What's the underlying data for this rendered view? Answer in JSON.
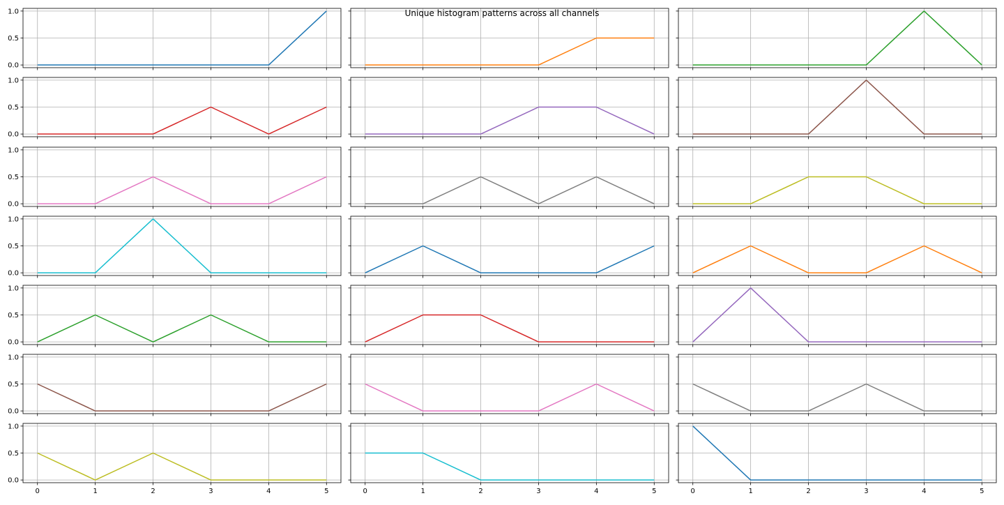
{
  "figure": {
    "title": "Unique histogram patterns across all channels"
  },
  "chart_data": {
    "type": "line",
    "title": "Unique histogram patterns across all channels",
    "layout": "7 rows x 3 columns",
    "x": [
      0,
      1,
      2,
      3,
      4,
      5
    ],
    "xlim": [
      -0.25,
      5.25
    ],
    "ylim": [
      -0.05,
      1.05
    ],
    "x_ticks": [
      "0",
      "1",
      "2",
      "3",
      "4",
      "5"
    ],
    "y_ticks": [
      "0.0",
      "0.5",
      "1.0"
    ],
    "grid": true,
    "sharex": true,
    "sharey": true,
    "panels": [
      {
        "color": "#1f77b4",
        "values": [
          0,
          0,
          0,
          0,
          0,
          1
        ]
      },
      {
        "color": "#ff7f0e",
        "values": [
          0,
          0,
          0,
          0,
          0.5,
          0.5
        ]
      },
      {
        "color": "#2ca02c",
        "values": [
          0,
          0,
          0,
          0,
          1,
          0
        ]
      },
      {
        "color": "#d62728",
        "values": [
          0,
          0,
          0,
          0.5,
          0,
          0.5
        ]
      },
      {
        "color": "#9467bd",
        "values": [
          0,
          0,
          0,
          0.5,
          0.5,
          0
        ]
      },
      {
        "color": "#8c564b",
        "values": [
          0,
          0,
          0,
          1,
          0,
          0
        ]
      },
      {
        "color": "#e377c2",
        "values": [
          0,
          0,
          0.5,
          0,
          0,
          0.5
        ]
      },
      {
        "color": "#7f7f7f",
        "values": [
          0,
          0,
          0.5,
          0,
          0.5,
          0
        ]
      },
      {
        "color": "#bcbd22",
        "values": [
          0,
          0,
          0.5,
          0.5,
          0,
          0
        ]
      },
      {
        "color": "#17becf",
        "values": [
          0,
          0,
          1,
          0,
          0,
          0
        ]
      },
      {
        "color": "#1f77b4",
        "values": [
          0,
          0.5,
          0,
          0,
          0,
          0.5
        ]
      },
      {
        "color": "#ff7f0e",
        "values": [
          0,
          0.5,
          0,
          0,
          0.5,
          0
        ]
      },
      {
        "color": "#2ca02c",
        "values": [
          0,
          0.5,
          0,
          0.5,
          0,
          0
        ]
      },
      {
        "color": "#d62728",
        "values": [
          0,
          0.5,
          0.5,
          0,
          0,
          0
        ]
      },
      {
        "color": "#9467bd",
        "values": [
          0,
          1,
          0,
          0,
          0,
          0
        ]
      },
      {
        "color": "#8c564b",
        "values": [
          0.5,
          0,
          0,
          0,
          0,
          0.5
        ]
      },
      {
        "color": "#e377c2",
        "values": [
          0.5,
          0,
          0,
          0,
          0.5,
          0
        ]
      },
      {
        "color": "#7f7f7f",
        "values": [
          0.5,
          0,
          0,
          0.5,
          0,
          0
        ]
      },
      {
        "color": "#bcbd22",
        "values": [
          0.5,
          0,
          0.5,
          0,
          0,
          0
        ]
      },
      {
        "color": "#17becf",
        "values": [
          0.5,
          0.5,
          0,
          0,
          0,
          0
        ]
      },
      {
        "color": "#1f77b4",
        "values": [
          1,
          0,
          0,
          0,
          0,
          0
        ]
      }
    ]
  }
}
